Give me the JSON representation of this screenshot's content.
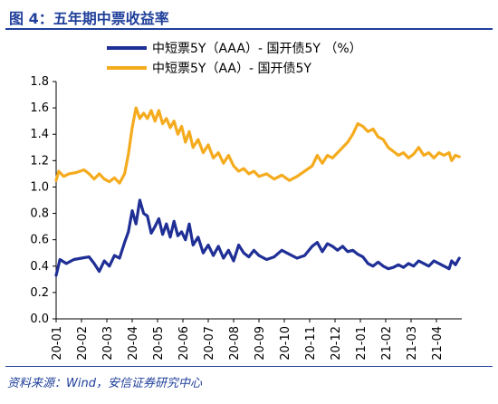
{
  "title": "图 4：五年期中票收益率",
  "source": "资料来源：Wind，安信证券研究中心",
  "chart_data": {
    "type": "line",
    "ylim": [
      0,
      1.8
    ],
    "yticks": [
      "0.0",
      "0.2",
      "0.4",
      "0.6",
      "0.8",
      "1.0",
      "1.2",
      "1.4",
      "1.6",
      "1.8"
    ],
    "xticks": [
      "20-01",
      "20-02",
      "20-03",
      "20-04",
      "20-05",
      "20-06",
      "20-07",
      "20-08",
      "20-09",
      "20-10",
      "20-11",
      "20-12",
      "21-01",
      "21-02",
      "21-03",
      "21-04"
    ],
    "legend_position": "top",
    "series": [
      {
        "name": "中短票5Y（AAA）- 国开债5Y （%）",
        "color": "#1f2f96",
        "points": [
          [
            0.0,
            0.33
          ],
          [
            0.15,
            0.45
          ],
          [
            0.4,
            0.42
          ],
          [
            0.7,
            0.45
          ],
          [
            1.0,
            0.46
          ],
          [
            1.3,
            0.47
          ],
          [
            1.5,
            0.42
          ],
          [
            1.7,
            0.36
          ],
          [
            1.9,
            0.44
          ],
          [
            2.1,
            0.4
          ],
          [
            2.3,
            0.48
          ],
          [
            2.5,
            0.46
          ],
          [
            2.7,
            0.58
          ],
          [
            2.85,
            0.66
          ],
          [
            3.0,
            0.82
          ],
          [
            3.15,
            0.72
          ],
          [
            3.3,
            0.9
          ],
          [
            3.45,
            0.8
          ],
          [
            3.6,
            0.78
          ],
          [
            3.75,
            0.65
          ],
          [
            3.9,
            0.7
          ],
          [
            4.05,
            0.76
          ],
          [
            4.2,
            0.64
          ],
          [
            4.35,
            0.72
          ],
          [
            4.5,
            0.62
          ],
          [
            4.65,
            0.74
          ],
          [
            4.8,
            0.63
          ],
          [
            4.95,
            0.66
          ],
          [
            5.1,
            0.6
          ],
          [
            5.25,
            0.72
          ],
          [
            5.4,
            0.56
          ],
          [
            5.6,
            0.62
          ],
          [
            5.8,
            0.5
          ],
          [
            6.0,
            0.56
          ],
          [
            6.2,
            0.48
          ],
          [
            6.4,
            0.55
          ],
          [
            6.6,
            0.46
          ],
          [
            6.8,
            0.52
          ],
          [
            7.0,
            0.44
          ],
          [
            7.2,
            0.56
          ],
          [
            7.4,
            0.5
          ],
          [
            7.6,
            0.47
          ],
          [
            7.8,
            0.52
          ],
          [
            8.0,
            0.48
          ],
          [
            8.3,
            0.45
          ],
          [
            8.6,
            0.47
          ],
          [
            8.9,
            0.52
          ],
          [
            9.2,
            0.49
          ],
          [
            9.5,
            0.46
          ],
          [
            9.8,
            0.48
          ],
          [
            10.1,
            0.55
          ],
          [
            10.3,
            0.58
          ],
          [
            10.5,
            0.51
          ],
          [
            10.7,
            0.57
          ],
          [
            10.9,
            0.55
          ],
          [
            11.1,
            0.52
          ],
          [
            11.3,
            0.55
          ],
          [
            11.5,
            0.51
          ],
          [
            11.7,
            0.52
          ],
          [
            11.9,
            0.49
          ],
          [
            12.1,
            0.47
          ],
          [
            12.3,
            0.42
          ],
          [
            12.5,
            0.4
          ],
          [
            12.7,
            0.43
          ],
          [
            12.9,
            0.4
          ],
          [
            13.1,
            0.38
          ],
          [
            13.3,
            0.39
          ],
          [
            13.5,
            0.41
          ],
          [
            13.7,
            0.39
          ],
          [
            13.9,
            0.42
          ],
          [
            14.1,
            0.4
          ],
          [
            14.3,
            0.44
          ],
          [
            14.5,
            0.42
          ],
          [
            14.7,
            0.4
          ],
          [
            14.9,
            0.44
          ],
          [
            15.1,
            0.42
          ],
          [
            15.3,
            0.4
          ],
          [
            15.5,
            0.38
          ],
          [
            15.6,
            0.44
          ],
          [
            15.75,
            0.41
          ],
          [
            15.9,
            0.46
          ]
        ]
      },
      {
        "name": "中短票5Y（AA）- 国开债5Y",
        "color": "#f5ab1e",
        "points": [
          [
            0.0,
            1.05
          ],
          [
            0.1,
            1.12
          ],
          [
            0.3,
            1.08
          ],
          [
            0.5,
            1.1
          ],
          [
            0.8,
            1.11
          ],
          [
            1.1,
            1.13
          ],
          [
            1.3,
            1.1
          ],
          [
            1.5,
            1.06
          ],
          [
            1.7,
            1.1
          ],
          [
            1.9,
            1.06
          ],
          [
            2.1,
            1.04
          ],
          [
            2.3,
            1.07
          ],
          [
            2.5,
            1.03
          ],
          [
            2.7,
            1.1
          ],
          [
            2.85,
            1.25
          ],
          [
            3.0,
            1.45
          ],
          [
            3.15,
            1.6
          ],
          [
            3.3,
            1.52
          ],
          [
            3.45,
            1.56
          ],
          [
            3.6,
            1.52
          ],
          [
            3.75,
            1.58
          ],
          [
            3.9,
            1.5
          ],
          [
            4.05,
            1.58
          ],
          [
            4.2,
            1.48
          ],
          [
            4.35,
            1.52
          ],
          [
            4.5,
            1.45
          ],
          [
            4.65,
            1.5
          ],
          [
            4.8,
            1.4
          ],
          [
            4.95,
            1.46
          ],
          [
            5.1,
            1.34
          ],
          [
            5.25,
            1.42
          ],
          [
            5.4,
            1.3
          ],
          [
            5.6,
            1.36
          ],
          [
            5.8,
            1.26
          ],
          [
            6.0,
            1.32
          ],
          [
            6.2,
            1.22
          ],
          [
            6.4,
            1.26
          ],
          [
            6.6,
            1.18
          ],
          [
            6.8,
            1.24
          ],
          [
            7.0,
            1.16
          ],
          [
            7.2,
            1.12
          ],
          [
            7.4,
            1.14
          ],
          [
            7.6,
            1.1
          ],
          [
            7.8,
            1.12
          ],
          [
            8.0,
            1.08
          ],
          [
            8.3,
            1.1
          ],
          [
            8.6,
            1.06
          ],
          [
            8.9,
            1.09
          ],
          [
            9.2,
            1.05
          ],
          [
            9.5,
            1.08
          ],
          [
            9.8,
            1.12
          ],
          [
            10.1,
            1.16
          ],
          [
            10.3,
            1.24
          ],
          [
            10.5,
            1.18
          ],
          [
            10.7,
            1.24
          ],
          [
            10.9,
            1.22
          ],
          [
            11.1,
            1.26
          ],
          [
            11.3,
            1.3
          ],
          [
            11.5,
            1.34
          ],
          [
            11.7,
            1.4
          ],
          [
            11.9,
            1.48
          ],
          [
            12.1,
            1.46
          ],
          [
            12.3,
            1.42
          ],
          [
            12.5,
            1.44
          ],
          [
            12.7,
            1.38
          ],
          [
            12.9,
            1.36
          ],
          [
            13.1,
            1.3
          ],
          [
            13.3,
            1.27
          ],
          [
            13.5,
            1.24
          ],
          [
            13.7,
            1.26
          ],
          [
            13.9,
            1.22
          ],
          [
            14.1,
            1.25
          ],
          [
            14.3,
            1.3
          ],
          [
            14.5,
            1.24
          ],
          [
            14.7,
            1.26
          ],
          [
            14.9,
            1.22
          ],
          [
            15.1,
            1.26
          ],
          [
            15.3,
            1.24
          ],
          [
            15.5,
            1.26
          ],
          [
            15.6,
            1.2
          ],
          [
            15.75,
            1.24
          ],
          [
            15.9,
            1.23
          ]
        ]
      }
    ]
  }
}
